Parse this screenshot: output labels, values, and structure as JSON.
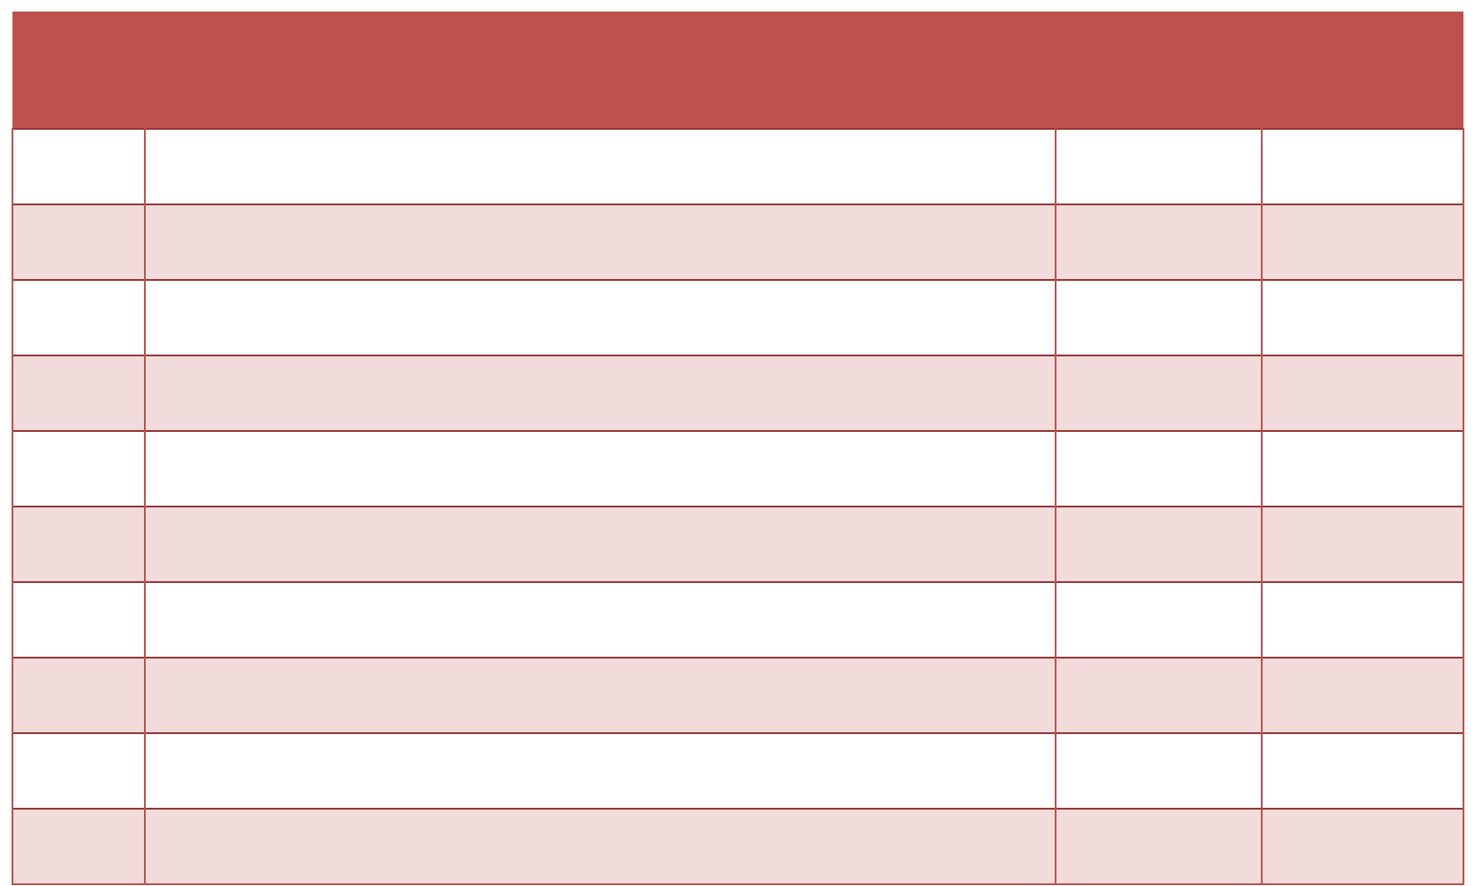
{
  "table": {
    "header_color": "#C0504D",
    "border_color": "#C0504D",
    "row_divider_color": "#943634",
    "band_color": "#F2DCDB",
    "row_color": "#FFFFFF",
    "header": [
      "",
      "",
      "",
      ""
    ],
    "rows": [
      [
        "",
        "",
        "",
        ""
      ],
      [
        "",
        "",
        "",
        ""
      ],
      [
        "",
        "",
        "",
        ""
      ],
      [
        "",
        "",
        "",
        ""
      ],
      [
        "",
        "",
        "",
        ""
      ],
      [
        "",
        "",
        "",
        ""
      ],
      [
        "",
        "",
        "",
        ""
      ],
      [
        "",
        "",
        "",
        ""
      ],
      [
        "",
        "",
        "",
        ""
      ],
      [
        "",
        "",
        "",
        ""
      ]
    ]
  }
}
